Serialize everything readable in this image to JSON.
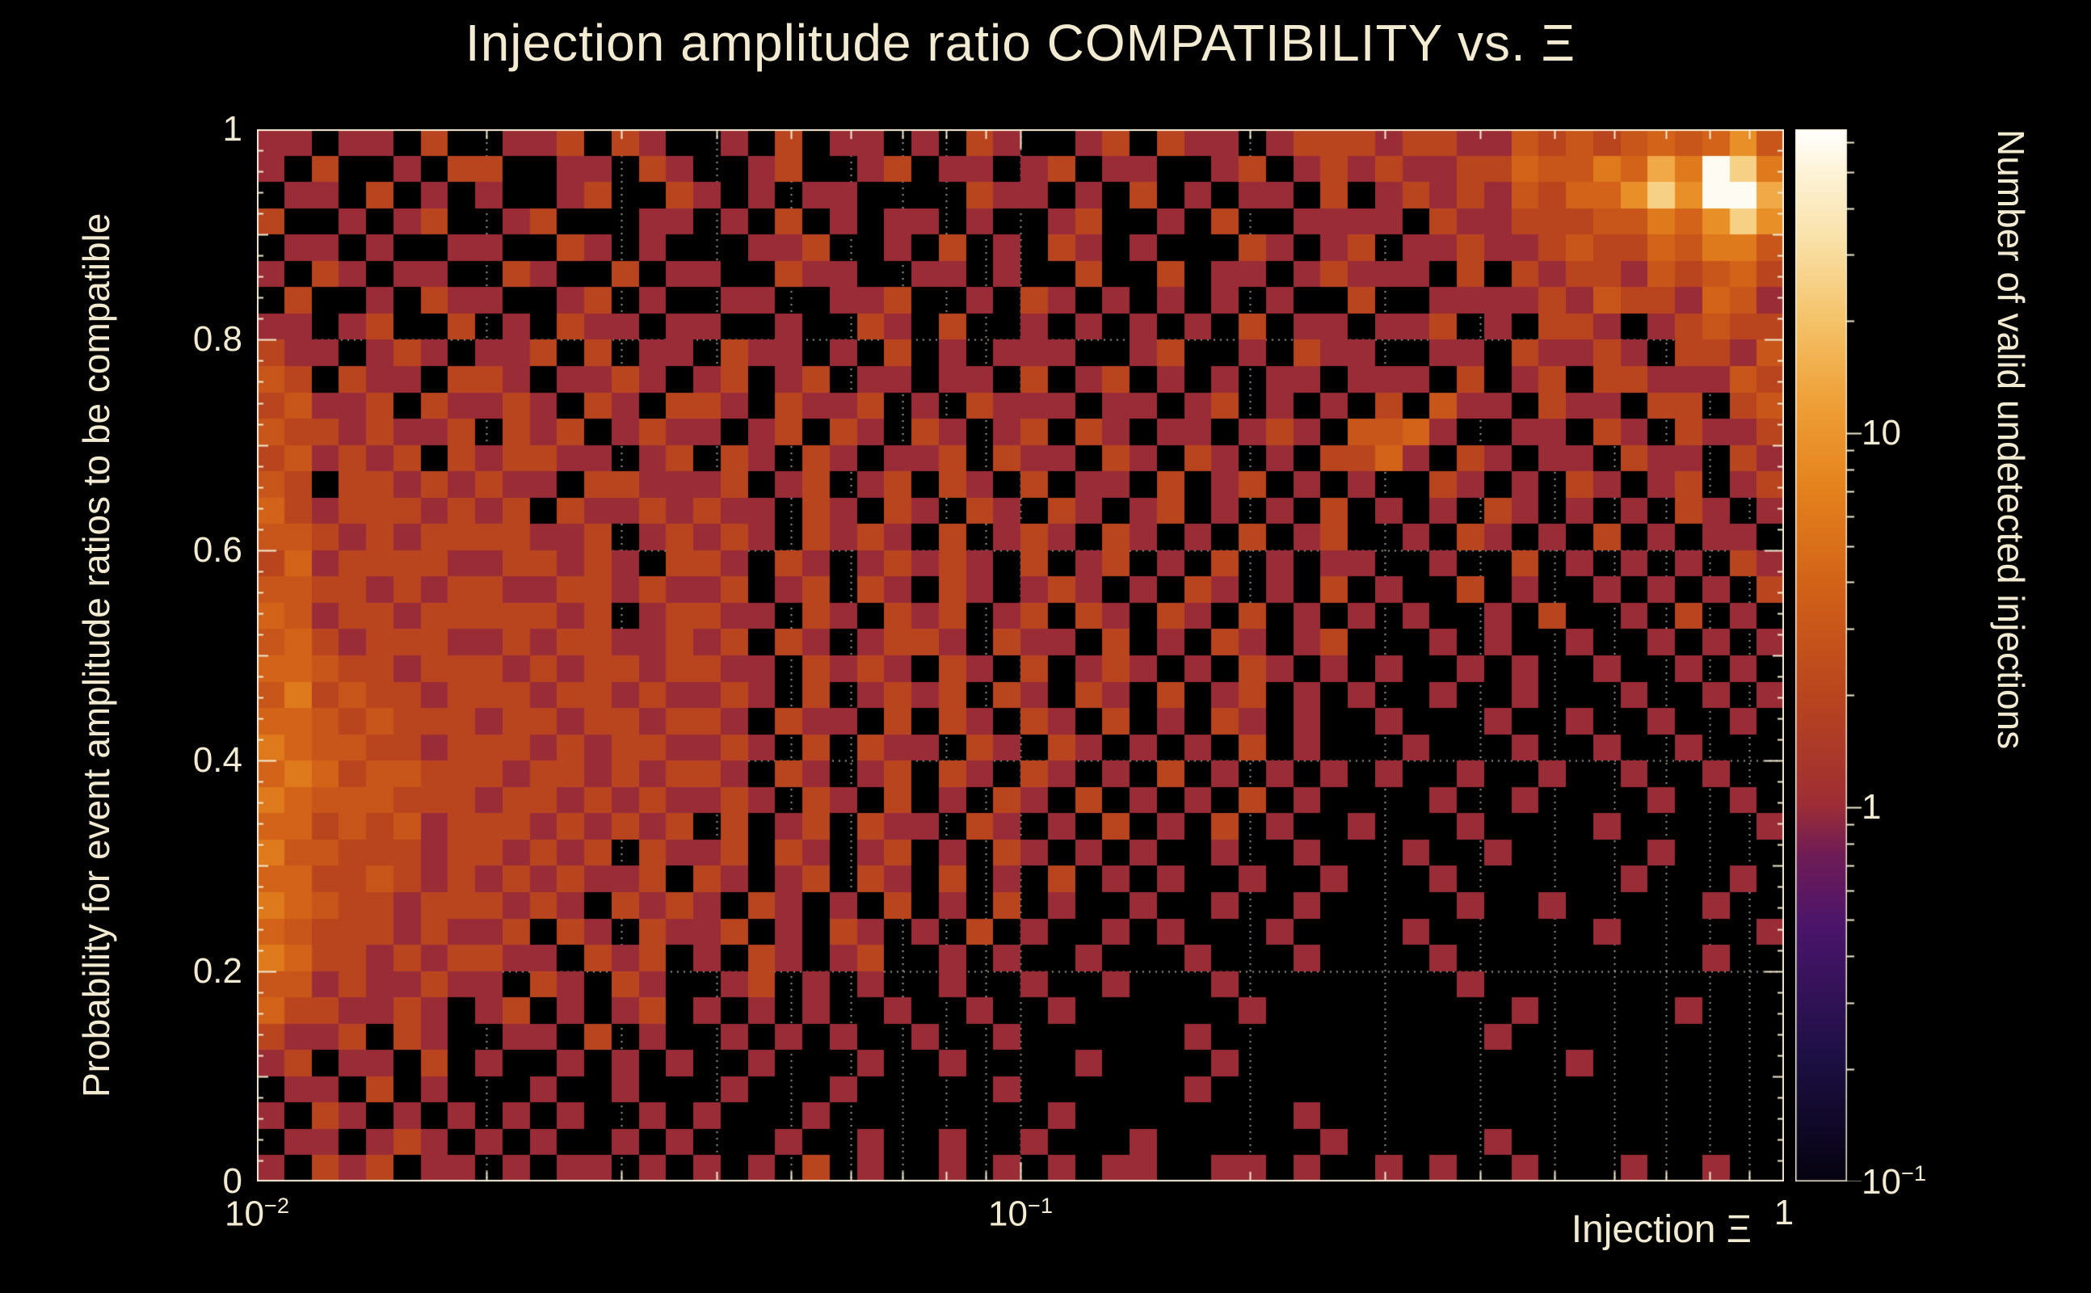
{
  "title": "Injection amplitude ratio COMPATIBILITY vs.  Ξ",
  "axes": {
    "x": {
      "label": "Injection Ξ",
      "scale": "log",
      "ticks": [
        {
          "base": "10",
          "sup": "−2",
          "frac": 0
        },
        {
          "base": "10",
          "sup": "−1",
          "frac": 0.5
        },
        {
          "base": "1",
          "sup": "",
          "frac": 1
        }
      ]
    },
    "y": {
      "label": "Probability for event amplitude ratios to be compatible",
      "scale": "linear",
      "ticks": [
        {
          "text": "0",
          "value": 0
        },
        {
          "text": "0.2",
          "value": 0.2
        },
        {
          "text": "0.4",
          "value": 0.4
        },
        {
          "text": "0.6",
          "value": 0.6
        },
        {
          "text": "0.8",
          "value": 0.8
        },
        {
          "text": "1",
          "value": 1
        }
      ]
    },
    "z": {
      "label": "Number of valid undetected injections",
      "scale": "log",
      "ticks": [
        {
          "base": "10",
          "sup": "",
          "value": 10
        },
        {
          "base": "1",
          "sup": "",
          "value": 1
        },
        {
          "base": "10",
          "sup": "−1",
          "value": 0.1
        }
      ]
    }
  },
  "colors": {
    "background": "#000000",
    "text": "#f3ead2",
    "frame": "#f3ead2",
    "grid": "#d6cfc0",
    "palette": [
      [
        0.0,
        "#05030f"
      ],
      [
        0.12,
        "#1d1045"
      ],
      [
        0.24,
        "#49156b"
      ],
      [
        0.31,
        "#6f1c56"
      ],
      [
        0.36,
        "#9e2e35"
      ],
      [
        0.46,
        "#b8441f"
      ],
      [
        0.56,
        "#d06018"
      ],
      [
        0.66,
        "#e4821d"
      ],
      [
        0.74,
        "#ee9f37"
      ],
      [
        0.82,
        "#f4c36a"
      ],
      [
        0.9,
        "#f9e2ac"
      ],
      [
        0.96,
        "#fdf3d8"
      ],
      [
        1.0,
        "#ffffff"
      ]
    ]
  },
  "chart_data": {
    "type": "heatmap",
    "title": "Injection amplitude ratio COMPATIBILITY vs.  Ξ",
    "xlabel": "Injection Ξ",
    "ylabel": "Probability for event amplitude ratios to be compatible",
    "zlabel": "Number of valid undetected injections",
    "x_scale": "log",
    "x_range": [
      0.01,
      1
    ],
    "y_scale": "linear",
    "y_range": [
      0,
      1
    ],
    "z_scale": "log",
    "z_range": [
      0.1,
      65
    ],
    "grid": true,
    "n_cols": 56,
    "n_rows": 40,
    "value_key": [
      0,
      1,
      2,
      3,
      4,
      6,
      9,
      14,
      25,
      60
    ],
    "rows_top_to_bottom": [
      "11011020011202100102011010210012021101222122113232343463",
      "10200102200110210012001201101201100120121211224335475985",
      "01102010100120021010110000211010201011020121213244686997",
      "20010120012000110102010110100120010200111102112223354686",
      "01101001100210100011200102010210100021012011211232243553",
      "10210110021002011002110011010020020110121110202122132342",
      "02001021100120100110011200102101010101002001111213221431",
      "11012002010211011001002102001010101020110112010221012322",
      "21101210112020110211010201011100120010211001102112102213",
      "32021102210112101201201101102012010101101110201202211132",
      "23112021121021022102112010211101101201010203110211022023",
      "32212112021201211012021021012021011012103341001102102112",
      "23121202122110120210210112021102102101022410210110211021",
      "32022121211022111201201202102011020120101002101021012012",
      "42122212120211212110210210210210120101020101021010102101",
      "33212122221120121210212102012102101020120010210102010110",
      "24122221122121022102101212102012010201011001002010101021",
      "33221212211221211201202102101210102101020100201001010102",
      "43122122222120122110210212012021021020101010010200102010",
      "34212221121221121202101221021102010210120001010010010101",
      "44322122212122122110212102102012101021010100101001001010",
      "35232212221221211210201212021021020120101001001000100101",
      "44323222122122122102110202102102010210100100010010010010",
      "54332212221212211210202110210210101020100010001001001000",
      "45423322212212122102101202102101020101010100100100100100",
      "54333222122121211210210201021020101020100001001000010010",
      "44232312221212120201202110210102010201001000100001000001",
      "53322212212120211202101201021010100100100010010000010000",
      "44223212121211202101202102010201010010010001000000100010",
      "54322122212102121021010201020100100100100000100100000100",
      "43222121120210211201021010201001010001000010000001000001",
      "54221212211021201021012001010010001000100001000000000100",
      "33121121102102100120101001001001000100000000100000000000",
      "42211210120101201010100100100100000010000000001000001000",
      "21120210011020100101010010010000001000000000010000000000",
      "12011020100101010010001001000010000100000000000010000000",
      "01102010001001000100010000010000001000000000000000000000",
      "10210101010100101000100000000100000000100000000000000000",
      "01101210101001010001001001001000100000010000010000000000",
      "10212011010110101010201001010101100110100101001000100100"
    ]
  }
}
